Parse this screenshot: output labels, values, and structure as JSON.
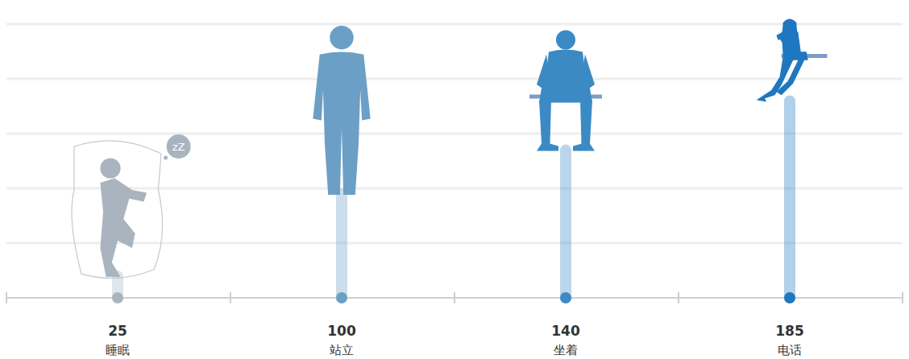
{
  "chart_data": {
    "type": "bar",
    "categories": [
      "睡眠",
      "站立",
      "坐着",
      "电话"
    ],
    "values": [
      25,
      100,
      140,
      185
    ],
    "colors": [
      "#a9b4bf",
      "#6c9fc5",
      "#3b8ac4",
      "#1f77c0"
    ],
    "ylim": [
      0,
      250
    ],
    "yticks": [
      0,
      50,
      100,
      150,
      200,
      250
    ],
    "grid": true,
    "data_labels": true,
    "tick_labels": "x",
    "annotation": "zZ"
  }
}
